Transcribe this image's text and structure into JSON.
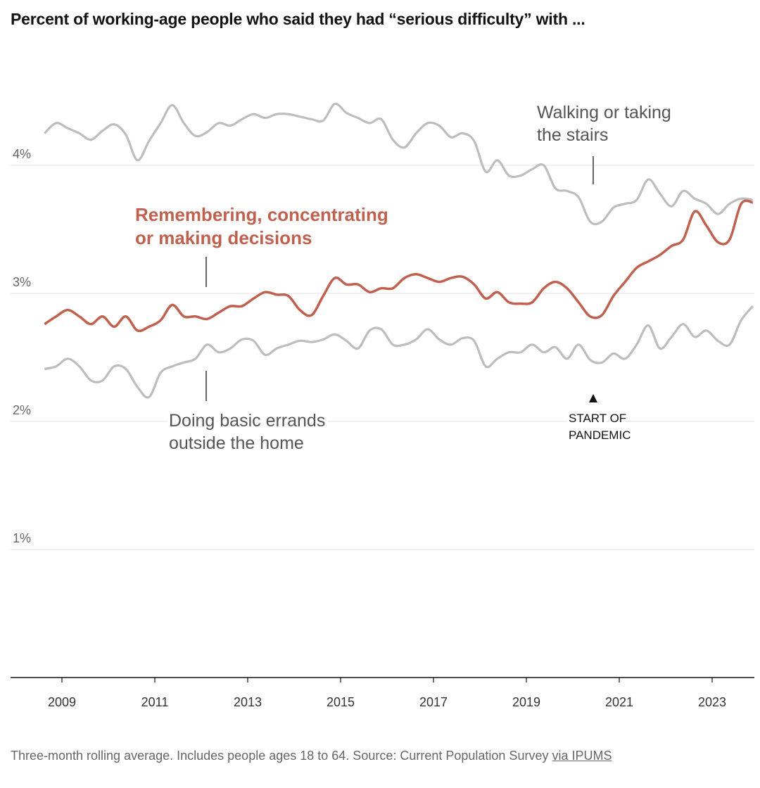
{
  "chart_data": {
    "type": "line",
    "title": "Percent of working-age people who said they had “serious difficulty” with ...",
    "xlabel": "",
    "ylabel": "",
    "xlim": [
      2008.5,
      2023.95
    ],
    "ylim": [
      0,
      5
    ],
    "x_start": 2008.625,
    "x_step": 0.25,
    "x_ticks": [
      2009,
      2011,
      2013,
      2015,
      2017,
      2019,
      2021,
      2023
    ],
    "x_tick_labels": [
      "2009",
      "2011",
      "2013",
      "2015",
      "2017",
      "2019",
      "2021",
      "2023"
    ],
    "y_ticks": [
      1,
      2,
      3,
      4
    ],
    "y_tick_labels": [
      "1%",
      "2%",
      "3%",
      "4%"
    ],
    "grid": true,
    "series": [
      {
        "name": "Walking or taking the stairs",
        "label_lines": [
          "Walking or taking",
          "the stairs"
        ],
        "color": "#bdbdbd",
        "values": [
          4.25,
          4.33,
          4.29,
          4.25,
          4.2,
          4.27,
          4.32,
          4.24,
          4.04,
          4.19,
          4.33,
          4.47,
          4.33,
          4.23,
          4.26,
          4.33,
          4.31,
          4.36,
          4.4,
          4.37,
          4.4,
          4.4,
          4.38,
          4.36,
          4.35,
          4.48,
          4.41,
          4.37,
          4.33,
          4.36,
          4.2,
          4.14,
          4.25,
          4.33,
          4.31,
          4.22,
          4.25,
          4.19,
          3.95,
          4.04,
          3.92,
          3.92,
          3.97,
          4.0,
          3.82,
          3.8,
          3.75,
          3.56,
          3.56,
          3.67,
          3.7,
          3.73,
          3.89,
          3.78,
          3.68,
          3.8,
          3.74,
          3.7,
          3.62,
          3.7,
          3.74,
          3.73
        ]
      },
      {
        "name": "Remembering, concentrating or making decisions",
        "label_lines": [
          "Remembering, concentrating",
          "or making decisions"
        ],
        "color": "#c0604e",
        "values": [
          2.76,
          2.82,
          2.87,
          2.82,
          2.76,
          2.82,
          2.74,
          2.82,
          2.71,
          2.74,
          2.79,
          2.91,
          2.82,
          2.82,
          2.8,
          2.85,
          2.9,
          2.9,
          2.96,
          3.01,
          2.99,
          2.98,
          2.87,
          2.83,
          2.98,
          3.12,
          3.07,
          3.07,
          3.01,
          3.04,
          3.04,
          3.12,
          3.15,
          3.12,
          3.09,
          3.12,
          3.13,
          3.07,
          2.96,
          3.01,
          2.93,
          2.92,
          2.93,
          3.04,
          3.09,
          3.04,
          2.93,
          2.82,
          2.83,
          2.98,
          3.09,
          3.2,
          3.25,
          3.3,
          3.37,
          3.42,
          3.64,
          3.53,
          3.4,
          3.42,
          3.7,
          3.71
        ]
      },
      {
        "name": "Doing basic errands outside the home",
        "label_lines": [
          "Doing basic errands",
          "outside the home"
        ],
        "color": "#bdbdbd",
        "values": [
          2.41,
          2.43,
          2.49,
          2.43,
          2.32,
          2.32,
          2.43,
          2.41,
          2.27,
          2.19,
          2.38,
          2.43,
          2.46,
          2.49,
          2.6,
          2.54,
          2.57,
          2.64,
          2.63,
          2.52,
          2.57,
          2.6,
          2.63,
          2.62,
          2.64,
          2.68,
          2.63,
          2.57,
          2.71,
          2.72,
          2.6,
          2.6,
          2.64,
          2.72,
          2.64,
          2.6,
          2.65,
          2.63,
          2.43,
          2.49,
          2.54,
          2.54,
          2.6,
          2.54,
          2.58,
          2.49,
          2.6,
          2.48,
          2.46,
          2.53,
          2.49,
          2.6,
          2.75,
          2.57,
          2.66,
          2.76,
          2.66,
          2.71,
          2.63,
          2.6,
          2.79,
          2.9
        ]
      }
    ],
    "annotations": [
      {
        "text_lines": [
          "START OF",
          "PANDEMIC"
        ],
        "x": 2020.25
      }
    ]
  },
  "footer": {
    "note": "Three-month rolling average. Includes people ages 18 to 64. Source: Current Population Survey ",
    "link": "via IPUMS"
  }
}
